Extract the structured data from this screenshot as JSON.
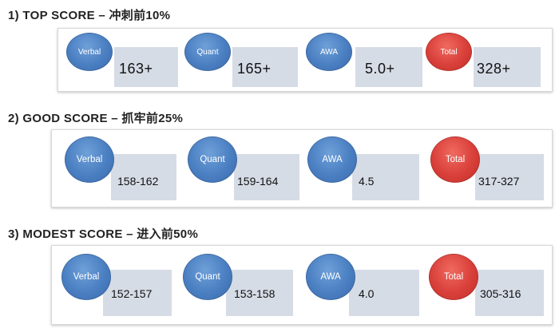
{
  "sections": [
    {
      "title": "1) TOP SCORE",
      "separator": " – ",
      "subtitle": "冲刺前10%",
      "scores": [
        {
          "label": "Verbal",
          "value": "163+",
          "color": "#4a7fc2"
        },
        {
          "label": "Quant",
          "value": "165+",
          "color": "#4a7fc2"
        },
        {
          "label": "AWA",
          "value": "5.0+",
          "color": "#4a7fc2"
        },
        {
          "label": "Total",
          "value": "328+",
          "color": "#d9403a"
        }
      ]
    },
    {
      "title": "2) GOOD SCORE",
      "separator": " – ",
      "subtitle": "抓牢前25%",
      "scores": [
        {
          "label": "Verbal",
          "value": "158-162",
          "color": "#4a7fc2"
        },
        {
          "label": "Quant",
          "value": "159-164",
          "color": "#4a7fc2"
        },
        {
          "label": "AWA",
          "value": "4.5",
          "color": "#4a7fc2"
        },
        {
          "label": "Total",
          "value": "317-327",
          "color": "#d9403a"
        }
      ]
    },
    {
      "title": "3) MODEST SCORE",
      "separator": " – ",
      "subtitle": "进入前50%",
      "scores": [
        {
          "label": "Verbal",
          "value": "152-157",
          "color": "#4a7fc2"
        },
        {
          "label": "Quant",
          "value": "153-158",
          "color": "#4a7fc2"
        },
        {
          "label": "AWA",
          "value": "4.0",
          "color": "#4a7fc2"
        },
        {
          "label": "Total",
          "value": "305-316",
          "color": "#d9403a"
        }
      ]
    }
  ]
}
